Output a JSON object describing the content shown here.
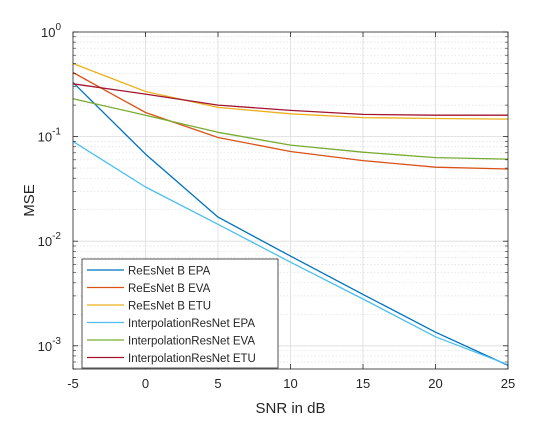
{
  "chart_data": {
    "type": "line",
    "title": "",
    "xlabel": "SNR in dB",
    "ylabel": "MSE",
    "xlim": [
      -5,
      25
    ],
    "ylim": [
      0.0006,
      1
    ],
    "yscale": "log",
    "grid": true,
    "minor_grid": true,
    "legend_position": "bottom-left",
    "x": [
      -5,
      0,
      5,
      10,
      15,
      20,
      25
    ],
    "xticks": [
      "-5",
      "0",
      "5",
      "10",
      "15",
      "20",
      "25"
    ],
    "yticks": [
      {
        "value": 0.001,
        "base": "10",
        "exp": "-3"
      },
      {
        "value": 0.01,
        "base": "10",
        "exp": "-2"
      },
      {
        "value": 0.1,
        "base": "10",
        "exp": "-1"
      },
      {
        "value": 1,
        "base": "10",
        "exp": "0"
      }
    ],
    "series": [
      {
        "name": "ReEsNet B EPA",
        "color": "#0072BD",
        "values": [
          0.33,
          0.068,
          0.017,
          0.0072,
          0.0031,
          0.00135,
          0.00065
        ]
      },
      {
        "name": "ReEsNet B EVA",
        "color": "#D95319",
        "values": [
          0.41,
          0.17,
          0.098,
          0.072,
          0.059,
          0.051,
          0.049
        ]
      },
      {
        "name": "ReEsNet B ETU",
        "color": "#EDB120",
        "values": [
          0.5,
          0.27,
          0.19,
          0.165,
          0.152,
          0.149,
          0.147
        ]
      },
      {
        "name": "InterpolationResNet EPA",
        "color": "#4DBEEE",
        "values": [
          0.09,
          0.033,
          0.0145,
          0.0063,
          0.0028,
          0.00122,
          0.00066
        ]
      },
      {
        "name": "InterpolationResNet EVA",
        "color": "#77AC30",
        "values": [
          0.23,
          0.16,
          0.11,
          0.083,
          0.071,
          0.063,
          0.061
        ]
      },
      {
        "name": "InterpolationResNet ETU",
        "color": "#A2142F",
        "values": [
          0.32,
          0.255,
          0.2,
          0.178,
          0.163,
          0.16,
          0.16
        ]
      }
    ]
  }
}
